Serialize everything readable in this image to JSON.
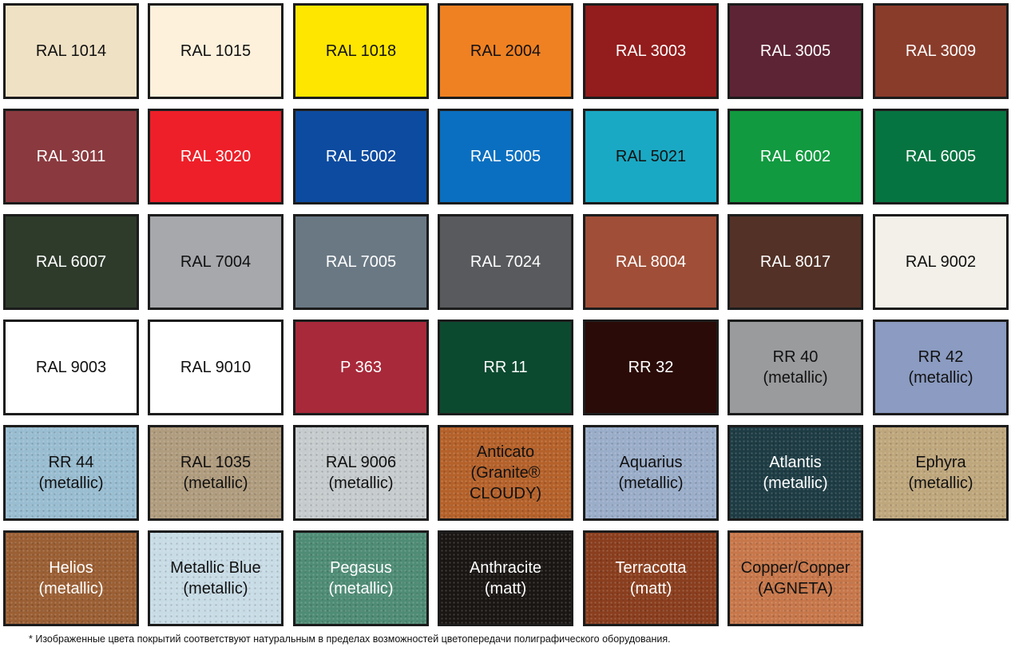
{
  "swatches": [
    {
      "label": "RAL 1014",
      "color": "#efe1c4",
      "text": "light"
    },
    {
      "label": "RAL 1015",
      "color": "#fdf1dc",
      "text": "light"
    },
    {
      "label": "RAL  1018",
      "color": "#ffe600",
      "text": "light"
    },
    {
      "label": "RAL 2004",
      "color": "#f08122",
      "text": "light"
    },
    {
      "label": "RAL 3003",
      "color": "#931c1c",
      "text": "dark"
    },
    {
      "label": "RAL 3005",
      "color": "#5d2435",
      "text": "dark"
    },
    {
      "label": "RAL 3009",
      "color": "#8a3c2b",
      "text": "dark"
    },
    {
      "label": "RAL  3011",
      "color": "#8a3a3f",
      "text": "dark"
    },
    {
      "label": "RAL  3020",
      "color": "#ee1f28",
      "text": "dark"
    },
    {
      "label": "RAL 5002",
      "color": "#0d4ba0",
      "text": "dark"
    },
    {
      "label": "RAL 5005",
      "color": "#0a6fc0",
      "text": "dark"
    },
    {
      "label": "RAL 5021",
      "color": "#1aa9c4",
      "text": "light"
    },
    {
      "label": "RAL 6002",
      "color": "#119a3f",
      "text": "dark"
    },
    {
      "label": "RAL 6005",
      "color": "#067440",
      "text": "dark"
    },
    {
      "label": "RAL 6007",
      "color": "#2e3b2b",
      "text": "dark"
    },
    {
      "label": "RAL 7004",
      "color": "#a6a8ac",
      "text": "light"
    },
    {
      "label": "RAL 7005",
      "color": "#6a7884",
      "text": "dark"
    },
    {
      "label": "RAL 7024",
      "color": "#585a5d",
      "text": "dark"
    },
    {
      "label": "RAL 8004",
      "color": "#a04e37",
      "text": "dark"
    },
    {
      "label": "RAL 8017",
      "color": "#533126",
      "text": "dark"
    },
    {
      "label": "RAL 9002",
      "color": "#f2f0e8",
      "text": "light"
    },
    {
      "label": "RAL 9003",
      "color": "#ffffff",
      "text": "light"
    },
    {
      "label": "RAL 9010",
      "color": "#ffffff",
      "text": "light"
    },
    {
      "label": "P 363",
      "color": "#a8293a",
      "text": "dark"
    },
    {
      "label": "RR 11",
      "color": "#0c4a30",
      "text": "dark"
    },
    {
      "label": "RR 32",
      "color": "#2a0b07",
      "text": "dark"
    },
    {
      "label": "RR 40\n(metallic)",
      "color": "#9a9b9d",
      "text": "light"
    },
    {
      "label": "RR 42\n(metallic)",
      "color": "#8b9bc1",
      "text": "light"
    },
    {
      "label": "RR 44\n(metallic)",
      "color": "#99bdd1",
      "text": "light",
      "texture": true
    },
    {
      "label": "RAL 1035\n(metallic)",
      "color": "#b09c7e",
      "text": "light",
      "texture": true
    },
    {
      "label": "RAL 9006\n(metallic)",
      "color": "#c6cbcd",
      "text": "light",
      "texture": true
    },
    {
      "label": "Anticato\n(Granite® \nCLOUDY)",
      "color": "#b5612a",
      "text": "light",
      "texture": true
    },
    {
      "label": "Aquarius\n(metallic)",
      "color": "#9aadc9",
      "text": "light",
      "texture": true
    },
    {
      "label": "Atlantis\n(metallic)",
      "color": "#1e3c44",
      "text": "dark",
      "texture": true
    },
    {
      "label": "Ephyra\n(metallic)",
      "color": "#bfa77d",
      "text": "light",
      "texture": true
    },
    {
      "label": "Helios\n(metallic)",
      "color": "#9b5f34",
      "text": "dark",
      "texture": true
    },
    {
      "label": "Metallic Blue\n(metallic)",
      "color": "#c8dce6",
      "text": "light",
      "texture": true
    },
    {
      "label": "Pegasus\n(metallic)",
      "color": "#4f8c76",
      "text": "dark",
      "texture": true
    },
    {
      "label": "Anthracite\n(matt)",
      "color": "#1a1614",
      "text": "dark",
      "texture": true
    },
    {
      "label": "Terracotta\n(matt)",
      "color": "#8a3e1e",
      "text": "dark",
      "texture": true
    },
    {
      "label": "Copper/Copper\n(AGNETA)",
      "color": "#c7774a",
      "text": "light",
      "texture": true
    }
  ],
  "footnote": "* Изображенные цвета покрытий соответствуют натуральным в пределах возможностей цветопередачи полиграфического оборудования."
}
